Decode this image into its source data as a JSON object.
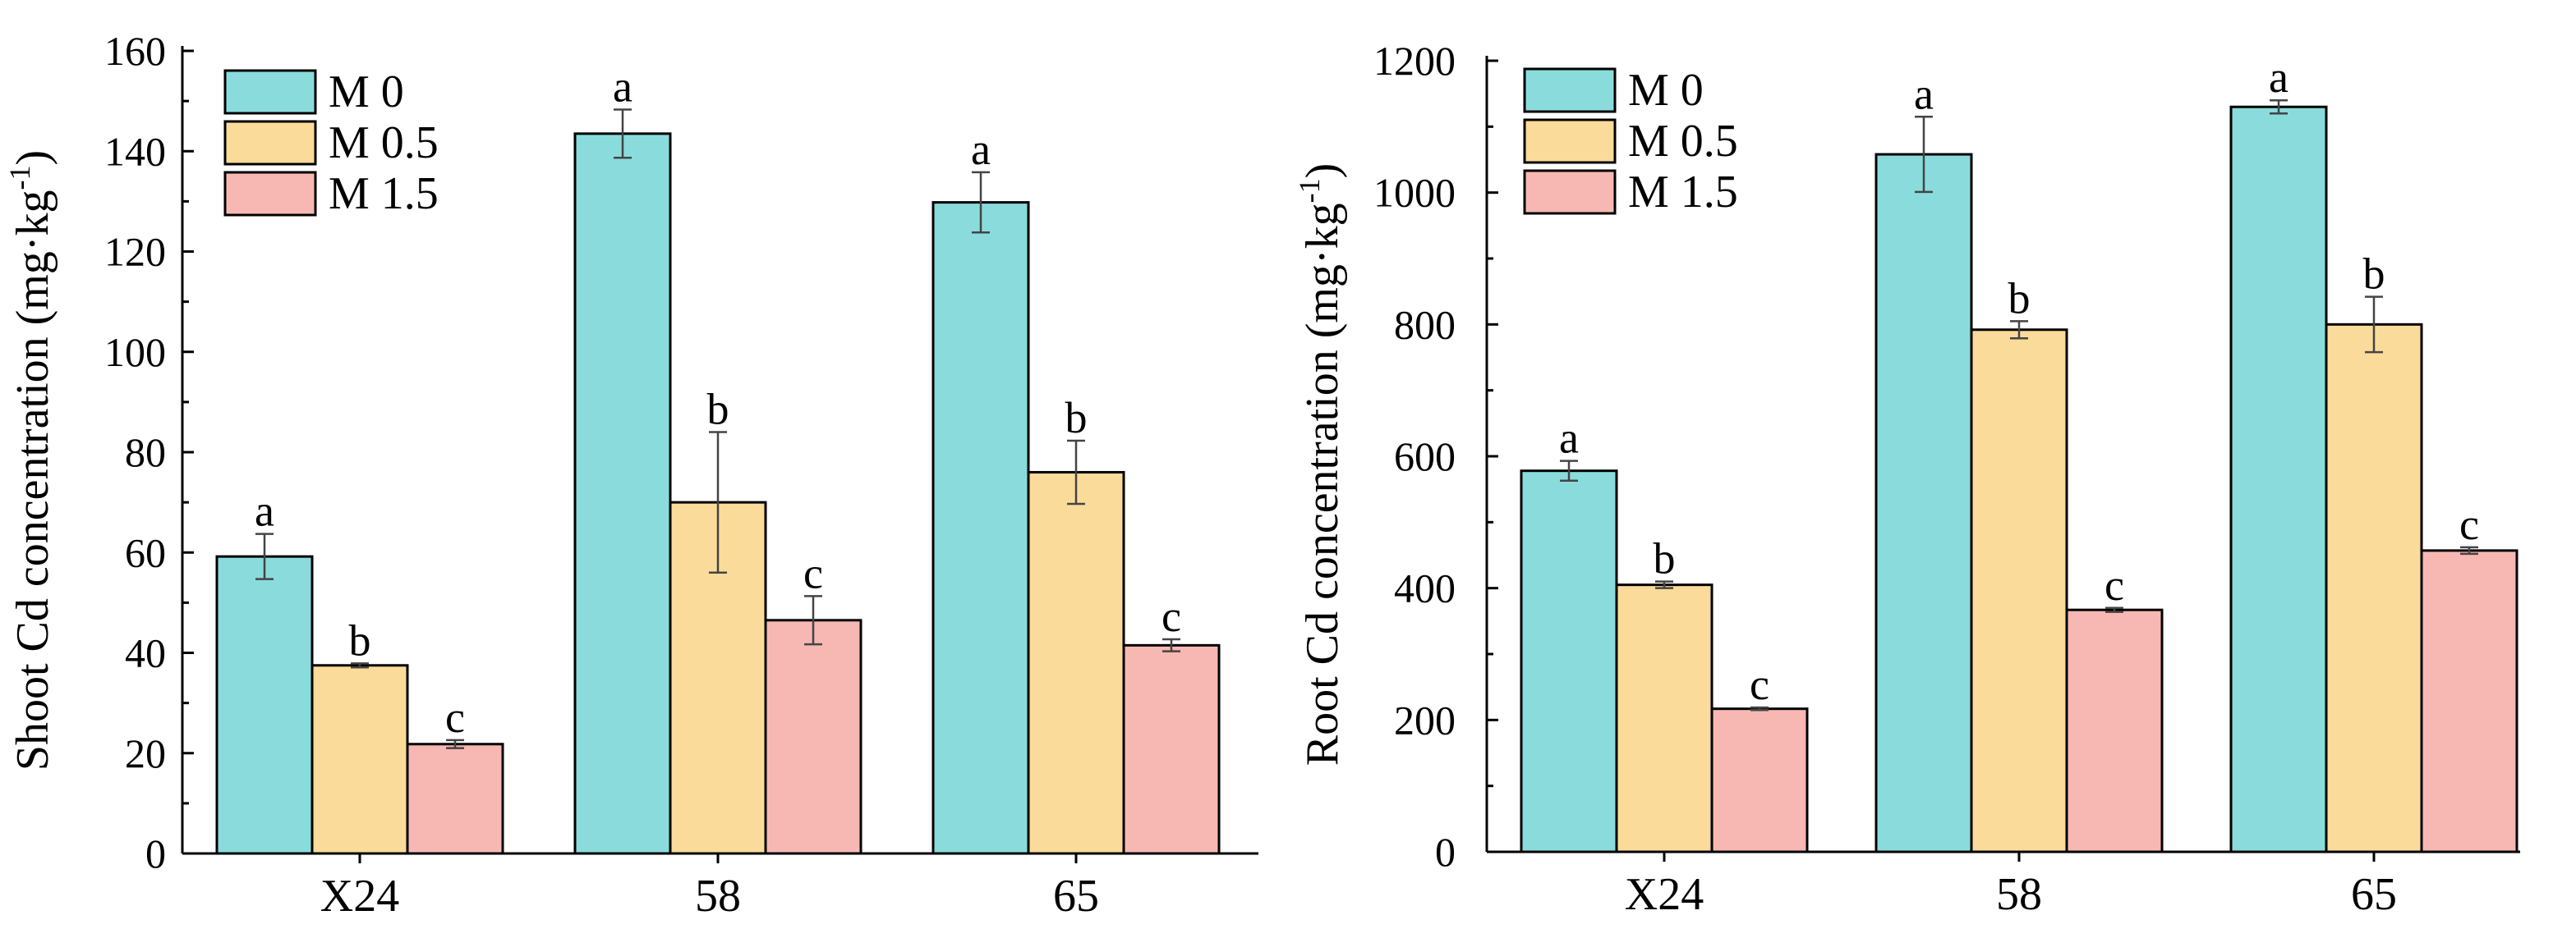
{
  "chart_data": [
    {
      "type": "bar",
      "categories": [
        "X24",
        "58",
        "65"
      ],
      "series": [
        {
          "name": "M 0",
          "color": "#8ADCDC",
          "values": [
            59.2,
            143.5,
            129.8
          ],
          "errors": [
            4.5,
            4.8,
            6.0
          ],
          "letters": [
            "a",
            "a",
            "a"
          ]
        },
        {
          "name": "M 0.5",
          "color": "#FBDB9A",
          "values": [
            37.5,
            70.0,
            76.0
          ],
          "errors": [
            0.4,
            14.0,
            6.3
          ],
          "letters": [
            "b",
            "b",
            "b"
          ]
        },
        {
          "name": "M 1.5",
          "color": "#F7B8B4",
          "values": [
            21.8,
            46.5,
            41.5
          ],
          "errors": [
            0.8,
            4.8,
            1.2
          ],
          "letters": [
            "c",
            "c",
            "c"
          ]
        }
      ],
      "ylabel_main": "Shoot Cd concentration (mg·kg",
      "ylabel_sup": "-1",
      "ylabel_close": ")",
      "ylim": [
        0,
        160
      ],
      "yticks": [
        "0",
        "20",
        "40",
        "60",
        "80",
        "100",
        "120",
        "140",
        "160"
      ],
      "legend": "top-left"
    },
    {
      "type": "bar",
      "categories": [
        "X24",
        "58",
        "65"
      ],
      "series": [
        {
          "name": "M 0",
          "color": "#8ADCDC",
          "values": [
            578,
            1058,
            1130
          ],
          "errors": [
            15,
            57,
            10
          ],
          "letters": [
            "a",
            "a",
            "a"
          ]
        },
        {
          "name": "M 0.5",
          "color": "#FBDB9A",
          "values": [
            405,
            792,
            800
          ],
          "errors": [
            5,
            13,
            42
          ],
          "letters": [
            "b",
            "b",
            "b"
          ]
        },
        {
          "name": "M 1.5",
          "color": "#F7B8B4",
          "values": [
            217,
            367,
            457
          ],
          "errors": [
            2,
            3,
            5
          ],
          "letters": [
            "c",
            "c",
            "c"
          ]
        }
      ],
      "ylabel_main": "Root Cd concentration (mg·kg",
      "ylabel_sup": "-1",
      "ylabel_close": ")",
      "ylim": [
        0,
        1200
      ],
      "yticks": [
        "0",
        "200",
        "400",
        "600",
        "800",
        "1000",
        "1200"
      ],
      "legend": "top-left"
    }
  ]
}
